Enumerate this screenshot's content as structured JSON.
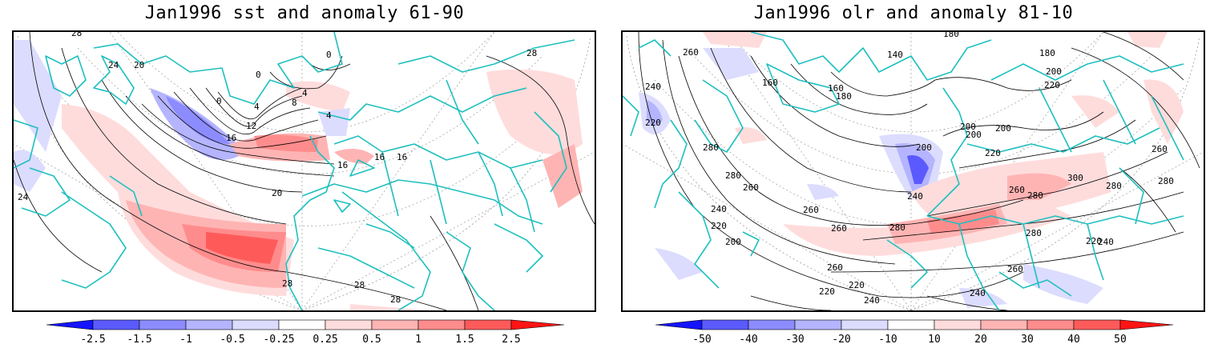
{
  "panels": [
    {
      "title": "Jan1996 sst and anomaly 61-90",
      "colorbar_labels": [
        "-2.5",
        "-1.5",
        "-1",
        "-0.5",
        "-0.25",
        "0.25",
        "0.5",
        "1",
        "1.5",
        "2.5"
      ],
      "contour_labels": [
        "28",
        "24",
        "20",
        "0",
        "0",
        "4",
        "4",
        "8",
        "12",
        "16",
        "16",
        "16",
        "20",
        "24",
        "28",
        "28",
        "28",
        "4",
        "0",
        "16",
        "28"
      ]
    },
    {
      "title": "Jan1996 olr and anomaly 81-10",
      "colorbar_labels": [
        "-50",
        "-40",
        "-30",
        "-20",
        "-10",
        "10",
        "20",
        "30",
        "40",
        "50"
      ],
      "contour_labels": [
        "260",
        "240",
        "220",
        "280",
        "280",
        "260",
        "240",
        "220",
        "200",
        "160",
        "160",
        "180",
        "140",
        "180",
        "180",
        "200",
        "220",
        "200",
        "200",
        "200",
        "200",
        "220",
        "240",
        "260",
        "280",
        "300",
        "280",
        "260",
        "280",
        "260",
        "240",
        "220",
        "260",
        "220",
        "220",
        "240",
        "240",
        "260",
        "280",
        "260",
        "280"
      ]
    }
  ],
  "colors": {
    "coast": "#1fbfbf",
    "contour": "#000000",
    "grid": "#999999",
    "neg_scale": [
      "#1414ff",
      "#5a5aff",
      "#8c8cff",
      "#b4b4ff",
      "#dcdcff"
    ],
    "pos_scale": [
      "#ffdcdc",
      "#ffb4b4",
      "#ff8c8c",
      "#ff5a5a",
      "#ff1414"
    ]
  }
}
